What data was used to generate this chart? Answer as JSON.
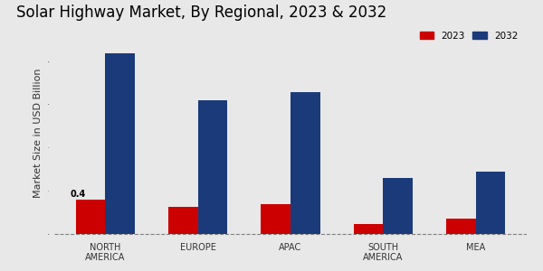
{
  "title": "Solar Highway Market, By Regional, 2023 & 2032",
  "ylabel": "Market Size in USD Billion",
  "categories": [
    "NORTH\nAMERICA",
    "EUROPE",
    "APAC",
    "SOUTH\nAMERICA",
    "MEA"
  ],
  "values_2023": [
    0.4,
    0.32,
    0.35,
    0.12,
    0.18
  ],
  "values_2032": [
    2.1,
    1.55,
    1.65,
    0.65,
    0.72
  ],
  "color_2023": "#cc0000",
  "color_2032": "#1a3a7a",
  "annotation_text": "0.4",
  "background_color": "#e8e8e8",
  "bar_width": 0.32,
  "title_fontsize": 12,
  "label_fontsize": 8,
  "tick_fontsize": 7,
  "legend_labels": [
    "2023",
    "2032"
  ],
  "ylim": [
    -0.05,
    2.4
  ],
  "xlim": [
    -0.55,
    4.55
  ],
  "bottom_bar_color": "#bb0000",
  "bottom_bar_height": 0.03
}
